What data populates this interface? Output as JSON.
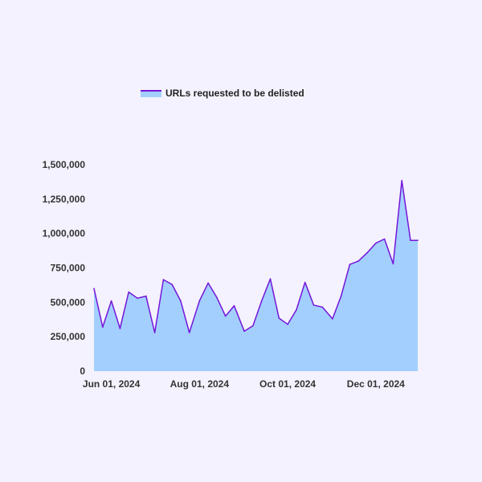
{
  "chart_data": {
    "type": "area",
    "title": "",
    "xlabel": "",
    "ylabel": "",
    "legend": {
      "position": "top-center",
      "entries": [
        "URLs requested to be delisted"
      ]
    },
    "grid": false,
    "ylim": [
      0,
      1500000
    ],
    "y_ticks": [
      0,
      250000,
      500000,
      750000,
      1000000,
      1250000,
      1500000
    ],
    "y_tick_labels": [
      "0",
      "250,000",
      "500,000",
      "750,000",
      "1,000,000",
      "1,250,000",
      "1,500,000"
    ],
    "x_range": [
      "2024-05-20",
      "2024-12-30"
    ],
    "x_ticks": [
      "2024-06-01",
      "2024-08-01",
      "2024-10-01",
      "2024-12-01"
    ],
    "x_tick_labels": [
      "Jun 01, 2024",
      "Aug 01, 2024",
      "Oct 01, 2024",
      "Dec 01, 2024"
    ],
    "colors": {
      "fill": "#a3cffe",
      "line": "#7416d8"
    },
    "series": [
      {
        "name": "URLs requested to be delisted",
        "x": [
          "2024-05-20",
          "2024-05-26",
          "2024-06-01",
          "2024-06-07",
          "2024-06-13",
          "2024-06-19",
          "2024-06-25",
          "2024-07-01",
          "2024-07-07",
          "2024-07-13",
          "2024-07-19",
          "2024-07-25",
          "2024-08-01",
          "2024-08-07",
          "2024-08-13",
          "2024-08-19",
          "2024-08-25",
          "2024-09-01",
          "2024-09-07",
          "2024-09-13",
          "2024-09-19",
          "2024-09-25",
          "2024-10-01",
          "2024-10-07",
          "2024-10-13",
          "2024-10-19",
          "2024-10-25",
          "2024-11-01",
          "2024-11-07",
          "2024-11-13",
          "2024-11-19",
          "2024-11-25",
          "2024-12-01",
          "2024-12-07",
          "2024-12-13",
          "2024-12-19",
          "2024-12-25",
          "2024-12-30"
        ],
        "values": [
          600000,
          320000,
          510000,
          310000,
          575000,
          530000,
          545000,
          280000,
          665000,
          630000,
          510000,
          280000,
          510000,
          640000,
          535000,
          400000,
          475000,
          290000,
          330000,
          510000,
          670000,
          385000,
          340000,
          445000,
          645000,
          480000,
          465000,
          380000,
          545000,
          775000,
          800000,
          860000,
          930000,
          960000,
          780000,
          1385000,
          950000,
          950000
        ]
      }
    ]
  }
}
